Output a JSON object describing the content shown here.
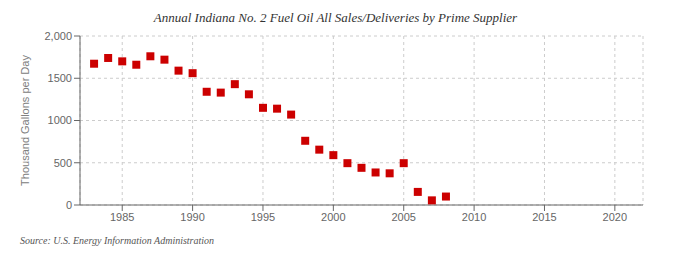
{
  "chart_data": {
    "type": "scatter",
    "title": "Annual Indiana No. 2 Fuel Oil All Sales/Deliveries by Prime Supplier",
    "ylabel": "Thousand Gallons per Day",
    "annotations": [
      "Source: U.S. Energy Information Administration"
    ],
    "x": [
      1983,
      1984,
      1985,
      1986,
      1987,
      1988,
      1989,
      1990,
      1991,
      1992,
      1993,
      1994,
      1995,
      1996,
      1997,
      1998,
      1999,
      2000,
      2001,
      2002,
      2003,
      2004,
      2005,
      2006,
      2007,
      2008
    ],
    "values": [
      1672,
      1740,
      1700,
      1660,
      1760,
      1720,
      1590,
      1560,
      1340,
      1330,
      1430,
      1310,
      1150,
      1140,
      1070,
      760,
      655,
      590,
      495,
      440,
      385,
      375,
      495,
      155,
      55,
      100
    ],
    "color": "#cc0000",
    "marker": "square",
    "xlim": [
      1982,
      2022
    ],
    "ylim": [
      0,
      2000
    ],
    "xticks": [
      1985,
      1990,
      1995,
      2000,
      2005,
      2010,
      2015,
      2020
    ],
    "yticks": [
      0,
      500,
      1000,
      1500,
      {
        "value": 2000,
        "label": "2,000"
      }
    ],
    "grid": true
  }
}
